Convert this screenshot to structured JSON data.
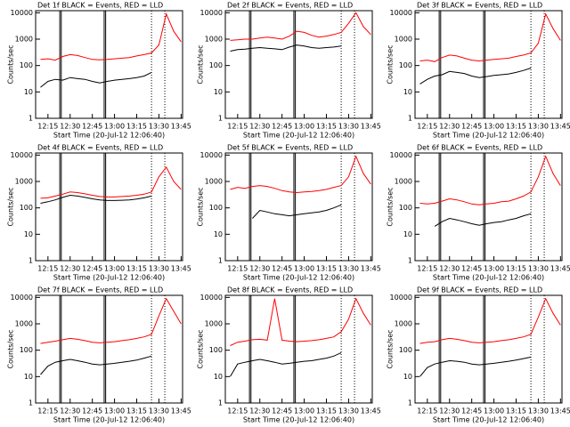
{
  "chart_data": [
    {
      "type": "line",
      "title": "Det 1f BLACK = Events, RED = LLD",
      "xlabel": "Start Time (20-Jul-12 12:06:40)",
      "ylabel": "Counts/sec",
      "log_y": true,
      "x": [
        730,
        735,
        740,
        745,
        750,
        755,
        760,
        765,
        770,
        775,
        780,
        785,
        790,
        795,
        800,
        805,
        810,
        815,
        820,
        825
      ],
      "series": [
        {
          "color": "#000000",
          "values": [
            15,
            25,
            30,
            28,
            35,
            32,
            30,
            25,
            22,
            25,
            28,
            30,
            32,
            35,
            40,
            55,
            null,
            null,
            null,
            null
          ]
        },
        {
          "color": "#ff0000",
          "values": [
            170,
            180,
            160,
            220,
            260,
            240,
            200,
            170,
            165,
            170,
            180,
            190,
            200,
            230,
            260,
            300,
            600,
            9000,
            2000,
            800
          ]
        }
      ],
      "xlim": [
        726.67,
        826
      ],
      "xticks": [
        {
          "value": 735,
          "label": "12:15"
        },
        {
          "value": 750,
          "label": "12:30"
        },
        {
          "value": 765,
          "label": "12:45"
        },
        {
          "value": 780,
          "label": "13:00"
        },
        {
          "value": 795,
          "label": "13:15"
        },
        {
          "value": 810,
          "label": "13:30"
        },
        {
          "value": 825,
          "label": "13:45"
        }
      ],
      "ylim": [
        1,
        12000
      ],
      "yticks": [
        1,
        10,
        100,
        1000,
        10000
      ],
      "vlines": [
        743,
        744,
        773,
        774
      ],
      "dotted_vlines": [
        805,
        814
      ]
    },
    {
      "type": "line",
      "title": "Det 2f BLACK = Events, RED = LLD",
      "xlabel": "Start Time (20-Jul-12 12:06:40)",
      "ylabel": "Counts/sec",
      "log_y": true,
      "x": [
        730,
        735,
        740,
        745,
        750,
        755,
        760,
        765,
        770,
        775,
        780,
        785,
        790,
        795,
        800,
        805,
        810,
        815,
        820,
        825
      ],
      "series": [
        {
          "color": "#000000",
          "values": [
            350,
            400,
            420,
            450,
            480,
            450,
            430,
            400,
            500,
            600,
            550,
            480,
            450,
            480,
            500,
            550,
            null,
            null,
            null,
            null
          ]
        },
        {
          "color": "#ff0000",
          "values": [
            900,
            950,
            1000,
            1000,
            1100,
            1200,
            1100,
            1000,
            1300,
            2000,
            1800,
            1400,
            1200,
            1300,
            1500,
            1800,
            4000,
            10000,
            3000,
            1500
          ]
        }
      ],
      "xlim": [
        726.67,
        826
      ],
      "xticks": [
        {
          "value": 735,
          "label": "12:15"
        },
        {
          "value": 750,
          "label": "12:30"
        },
        {
          "value": 765,
          "label": "12:45"
        },
        {
          "value": 780,
          "label": "13:00"
        },
        {
          "value": 795,
          "label": "13:15"
        },
        {
          "value": 810,
          "label": "13:30"
        },
        {
          "value": 825,
          "label": "13:45"
        }
      ],
      "ylim": [
        1,
        12000
      ],
      "yticks": [
        1,
        10,
        100,
        1000,
        10000
      ],
      "vlines": [
        743,
        744,
        773,
        774
      ],
      "dotted_vlines": [
        805,
        814
      ]
    },
    {
      "type": "line",
      "title": "Det 3f BLACK = Events, RED = LLD",
      "xlabel": "Start Time (20-Jul-12 12:06:40)",
      "ylabel": "Counts/sec",
      "log_y": true,
      "x": [
        730,
        735,
        740,
        745,
        750,
        755,
        760,
        765,
        770,
        775,
        780,
        785,
        790,
        795,
        800,
        805,
        810,
        815,
        820,
        825
      ],
      "series": [
        {
          "color": "#000000",
          "values": [
            20,
            30,
            40,
            45,
            60,
            55,
            50,
            40,
            35,
            38,
            42,
            45,
            48,
            55,
            65,
            80,
            null,
            null,
            null,
            null
          ]
        },
        {
          "color": "#ff0000",
          "values": [
            150,
            160,
            140,
            200,
            250,
            230,
            190,
            160,
            150,
            160,
            170,
            180,
            190,
            220,
            250,
            300,
            700,
            9000,
            2500,
            900
          ]
        }
      ],
      "xlim": [
        726.67,
        826
      ],
      "xticks": [
        {
          "value": 735,
          "label": "12:15"
        },
        {
          "value": 750,
          "label": "12:30"
        },
        {
          "value": 765,
          "label": "12:45"
        },
        {
          "value": 780,
          "label": "13:00"
        },
        {
          "value": 795,
          "label": "13:15"
        },
        {
          "value": 810,
          "label": "13:30"
        },
        {
          "value": 825,
          "label": "13:45"
        }
      ],
      "ylim": [
        1,
        12000
      ],
      "yticks": [
        1,
        10,
        100,
        1000,
        10000
      ],
      "vlines": [
        743,
        744,
        773,
        774
      ],
      "dotted_vlines": [
        805,
        814
      ]
    },
    {
      "type": "line",
      "title": "Det 4f BLACK = Events, RED = LLD",
      "xlabel": "Start Time (20-Jul-12 12:06:40)",
      "ylabel": "Counts/sec",
      "log_y": true,
      "x": [
        730,
        735,
        740,
        745,
        750,
        755,
        760,
        765,
        770,
        775,
        780,
        785,
        790,
        795,
        800,
        805,
        810,
        815,
        820,
        825
      ],
      "series": [
        {
          "color": "#000000",
          "values": [
            150,
            170,
            200,
            250,
            300,
            280,
            250,
            220,
            200,
            190,
            190,
            195,
            200,
            215,
            240,
            280,
            null,
            null,
            null,
            null
          ]
        },
        {
          "color": "#ff0000",
          "values": [
            230,
            240,
            280,
            330,
            400,
            380,
            340,
            300,
            270,
            260,
            260,
            270,
            280,
            300,
            330,
            400,
            1500,
            3500,
            1000,
            500
          ]
        }
      ],
      "xlim": [
        726.67,
        826
      ],
      "xticks": [
        {
          "value": 735,
          "label": "12:15"
        },
        {
          "value": 750,
          "label": "12:30"
        },
        {
          "value": 765,
          "label": "12:45"
        },
        {
          "value": 780,
          "label": "13:00"
        },
        {
          "value": 795,
          "label": "13:15"
        },
        {
          "value": 810,
          "label": "13:30"
        },
        {
          "value": 825,
          "label": "13:45"
        }
      ],
      "ylim": [
        1,
        12000
      ],
      "yticks": [
        1,
        10,
        100,
        1000,
        10000
      ],
      "vlines": [
        743,
        744,
        773,
        774
      ],
      "dotted_vlines": [
        805,
        814
      ]
    },
    {
      "type": "line",
      "title": "Det 5f BLACK = Events, RED = LLD",
      "xlabel": "Start Time (20-Jul-12 12:06:40)",
      "ylabel": "Counts/sec",
      "log_y": true,
      "x": [
        730,
        735,
        740,
        745,
        750,
        755,
        760,
        765,
        770,
        775,
        780,
        785,
        790,
        795,
        800,
        805,
        810,
        815,
        820,
        825
      ],
      "series": [
        {
          "color": "#000000",
          "values": [
            null,
            null,
            null,
            40,
            80,
            70,
            60,
            55,
            50,
            55,
            60,
            65,
            70,
            80,
            100,
            130,
            null,
            null,
            null,
            null
          ]
        },
        {
          "color": "#ff0000",
          "values": [
            500,
            600,
            550,
            650,
            700,
            650,
            550,
            450,
            400,
            380,
            400,
            420,
            450,
            500,
            600,
            700,
            1500,
            9000,
            2000,
            800
          ]
        }
      ],
      "xlim": [
        726.67,
        826
      ],
      "xticks": [
        {
          "value": 735,
          "label": "12:15"
        },
        {
          "value": 750,
          "label": "12:30"
        },
        {
          "value": 765,
          "label": "12:45"
        },
        {
          "value": 780,
          "label": "13:00"
        },
        {
          "value": 795,
          "label": "13:15"
        },
        {
          "value": 810,
          "label": "13:30"
        },
        {
          "value": 825,
          "label": "13:45"
        }
      ],
      "ylim": [
        1,
        12000
      ],
      "yticks": [
        1,
        10,
        100,
        1000,
        10000
      ],
      "vlines": [
        743,
        744,
        773,
        774
      ],
      "dotted_vlines": [
        805,
        814
      ]
    },
    {
      "type": "line",
      "title": "Det 6f BLACK = Events, RED = LLD",
      "xlabel": "Start Time (20-Jul-12 12:06:40)",
      "ylabel": "Counts/sec",
      "log_y": true,
      "x": [
        730,
        735,
        740,
        745,
        750,
        755,
        760,
        765,
        770,
        775,
        780,
        785,
        790,
        795,
        800,
        805,
        810,
        815,
        820,
        825
      ],
      "series": [
        {
          "color": "#000000",
          "values": [
            null,
            null,
            20,
            30,
            40,
            35,
            30,
            25,
            22,
            25,
            28,
            30,
            35,
            40,
            50,
            60,
            null,
            null,
            null,
            null
          ]
        },
        {
          "color": "#ff0000",
          "values": [
            150,
            140,
            150,
            180,
            220,
            200,
            170,
            140,
            130,
            140,
            150,
            170,
            180,
            220,
            280,
            400,
            1500,
            9000,
            2000,
            700
          ]
        }
      ],
      "xlim": [
        726.67,
        826
      ],
      "xticks": [
        {
          "value": 735,
          "label": "12:15"
        },
        {
          "value": 750,
          "label": "12:30"
        },
        {
          "value": 765,
          "label": "12:45"
        },
        {
          "value": 780,
          "label": "13:00"
        },
        {
          "value": 795,
          "label": "13:15"
        },
        {
          "value": 810,
          "label": "13:30"
        },
        {
          "value": 825,
          "label": "13:45"
        }
      ],
      "ylim": [
        1,
        12000
      ],
      "yticks": [
        1,
        10,
        100,
        1000,
        10000
      ],
      "vlines": [
        743,
        744,
        773,
        774
      ],
      "dotted_vlines": [
        805,
        814
      ]
    },
    {
      "type": "line",
      "title": "Det 7f BLACK = Events, RED = LLD",
      "xlabel": "Start Time (20-Jul-12 12:06:40)",
      "ylabel": "Counts/sec",
      "log_y": true,
      "x": [
        730,
        735,
        740,
        745,
        750,
        755,
        760,
        765,
        770,
        775,
        780,
        785,
        790,
        795,
        800,
        805,
        810,
        815,
        820,
        825
      ],
      "series": [
        {
          "color": "#000000",
          "values": [
            12,
            25,
            35,
            40,
            45,
            40,
            35,
            30,
            28,
            30,
            32,
            35,
            38,
            42,
            50,
            60,
            null,
            null,
            null,
            null
          ]
        },
        {
          "color": "#ff0000",
          "values": [
            180,
            200,
            220,
            250,
            280,
            260,
            230,
            200,
            190,
            200,
            210,
            230,
            250,
            280,
            320,
            400,
            2000,
            9000,
            3000,
            1000
          ]
        }
      ],
      "xlim": [
        726.67,
        826
      ],
      "xticks": [
        {
          "value": 735,
          "label": "12:15"
        },
        {
          "value": 750,
          "label": "12:30"
        },
        {
          "value": 765,
          "label": "12:45"
        },
        {
          "value": 780,
          "label": "13:00"
        },
        {
          "value": 795,
          "label": "13:15"
        },
        {
          "value": 810,
          "label": "13:30"
        },
        {
          "value": 825,
          "label": "13:45"
        }
      ],
      "ylim": [
        1,
        12000
      ],
      "yticks": [
        1,
        10,
        100,
        1000,
        10000
      ],
      "vlines": [
        743,
        744,
        773,
        774
      ],
      "dotted_vlines": [
        805,
        814
      ]
    },
    {
      "type": "line",
      "title": "Det 8f BLACK = Events, RED = LLD",
      "xlabel": "Start Time (20-Jul-12 12:06:40)",
      "ylabel": "Counts/sec",
      "log_y": true,
      "x": [
        730,
        735,
        740,
        745,
        750,
        755,
        760,
        765,
        770,
        775,
        780,
        785,
        790,
        795,
        800,
        805,
        810,
        815,
        820,
        825
      ],
      "series": [
        {
          "color": "#000000",
          "values": [
            10,
            30,
            35,
            40,
            45,
            40,
            35,
            30,
            32,
            35,
            38,
            40,
            45,
            50,
            60,
            80,
            null,
            null,
            null,
            null
          ]
        },
        {
          "color": "#ff0000",
          "values": [
            150,
            200,
            220,
            250,
            260,
            240,
            9000,
            240,
            220,
            210,
            220,
            230,
            250,
            280,
            320,
            500,
            1500,
            9000,
            2500,
            900
          ]
        }
      ],
      "xlim": [
        726.67,
        826
      ],
      "xticks": [
        {
          "value": 735,
          "label": "12:15"
        },
        {
          "value": 750,
          "label": "12:30"
        },
        {
          "value": 765,
          "label": "12:45"
        },
        {
          "value": 780,
          "label": "13:00"
        },
        {
          "value": 795,
          "label": "13:15"
        },
        {
          "value": 810,
          "label": "13:30"
        },
        {
          "value": 825,
          "label": "13:45"
        }
      ],
      "ylim": [
        1,
        12000
      ],
      "yticks": [
        1,
        10,
        100,
        1000,
        10000
      ],
      "vlines": [
        743,
        744,
        773,
        774
      ],
      "dotted_vlines": [
        805,
        814
      ]
    },
    {
      "type": "line",
      "title": "Det 9f BLACK = Events, RED = LLD",
      "xlabel": "Start Time (20-Jul-12 12:06:40)",
      "ylabel": "Counts/sec",
      "log_y": true,
      "x": [
        730,
        735,
        740,
        745,
        750,
        755,
        760,
        765,
        770,
        775,
        780,
        785,
        790,
        795,
        800,
        805,
        810,
        815,
        820,
        825
      ],
      "series": [
        {
          "color": "#000000",
          "values": [
            10,
            22,
            30,
            35,
            40,
            38,
            35,
            30,
            28,
            30,
            32,
            35,
            38,
            42,
            48,
            55,
            null,
            null,
            null,
            null
          ]
        },
        {
          "color": "#ff0000",
          "values": [
            180,
            200,
            210,
            250,
            280,
            260,
            230,
            200,
            190,
            200,
            210,
            230,
            250,
            280,
            320,
            400,
            1800,
            9000,
            2500,
            900
          ]
        }
      ],
      "xlim": [
        726.67,
        826
      ],
      "xticks": [
        {
          "value": 735,
          "label": "12:15"
        },
        {
          "value": 750,
          "label": "12:30"
        },
        {
          "value": 765,
          "label": "12:45"
        },
        {
          "value": 780,
          "label": "13:00"
        },
        {
          "value": 795,
          "label": "13:15"
        },
        {
          "value": 810,
          "label": "13:30"
        },
        {
          "value": 825,
          "label": "13:45"
        }
      ],
      "ylim": [
        1,
        12000
      ],
      "yticks": [
        1,
        10,
        100,
        1000,
        10000
      ],
      "vlines": [
        743,
        744,
        773,
        774
      ],
      "dotted_vlines": [
        805,
        814
      ]
    }
  ]
}
